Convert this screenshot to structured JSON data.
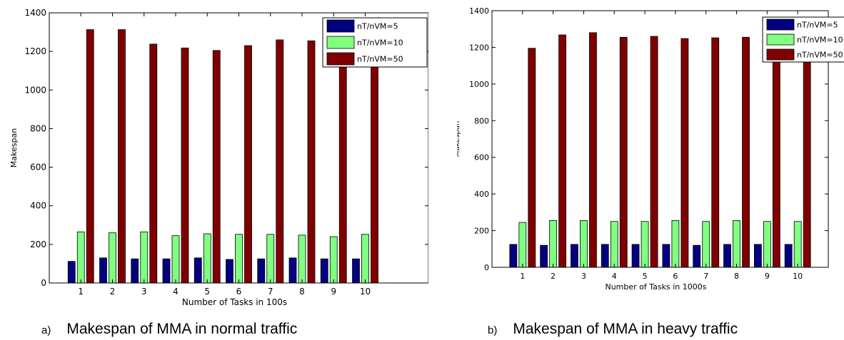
{
  "colors": {
    "series_1": "#000080",
    "series_2": "#80ff80",
    "series_3": "#800000"
  },
  "chart_data": [
    {
      "type": "bar",
      "xlabel": "Number of Tasks in 100s",
      "ylabel": "Makespan",
      "categories": [
        "1",
        "2",
        "3",
        "4",
        "5",
        "6",
        "7",
        "8",
        "9",
        "10"
      ],
      "xlim": [
        0,
        12
      ],
      "ylim": [
        0,
        1400
      ],
      "yticks": [
        0,
        200,
        400,
        600,
        800,
        1000,
        1200,
        1400
      ],
      "legend_position": "top-right",
      "series": [
        {
          "name": "nT/nVM=5",
          "values": [
            112,
            130,
            125,
            125,
            130,
            122,
            125,
            130,
            125,
            125
          ]
        },
        {
          "name": "nT/nVM=10",
          "values": [
            265,
            260,
            265,
            245,
            255,
            252,
            252,
            248,
            240,
            252
          ]
        },
        {
          "name": "nT/nVM=50",
          "values": [
            1313,
            1313,
            1238,
            1218,
            1205,
            1230,
            1260,
            1255,
            1255,
            1260
          ]
        }
      ]
    },
    {
      "type": "bar",
      "xlabel": "Number of Tasks in 1000s",
      "ylabel": "Makespan",
      "categories": [
        "1",
        "2",
        "3",
        "4",
        "5",
        "6",
        "7",
        "8",
        "9",
        "10"
      ],
      "xlim": [
        0,
        11
      ],
      "ylim": [
        0,
        1400
      ],
      "yticks": [
        0,
        200,
        400,
        600,
        800,
        1000,
        1200,
        1400
      ],
      "legend_position": "top-right",
      "series": [
        {
          "name": "nT/nVM=5",
          "values": [
            125,
            120,
            125,
            125,
            125,
            125,
            120,
            125,
            125,
            125
          ]
        },
        {
          "name": "nT/nVM=10",
          "values": [
            245,
            255,
            255,
            250,
            250,
            255,
            250,
            255,
            250,
            250
          ]
        },
        {
          "name": "nT/nVM=50",
          "values": [
            1195,
            1268,
            1280,
            1255,
            1260,
            1248,
            1252,
            1255,
            1255,
            1255
          ]
        }
      ]
    }
  ],
  "captions": [
    {
      "letter": "a)",
      "text": "Makespan of MMA in normal traffic"
    },
    {
      "letter": "b)",
      "text": "Makespan of MMA in heavy traffic"
    }
  ]
}
